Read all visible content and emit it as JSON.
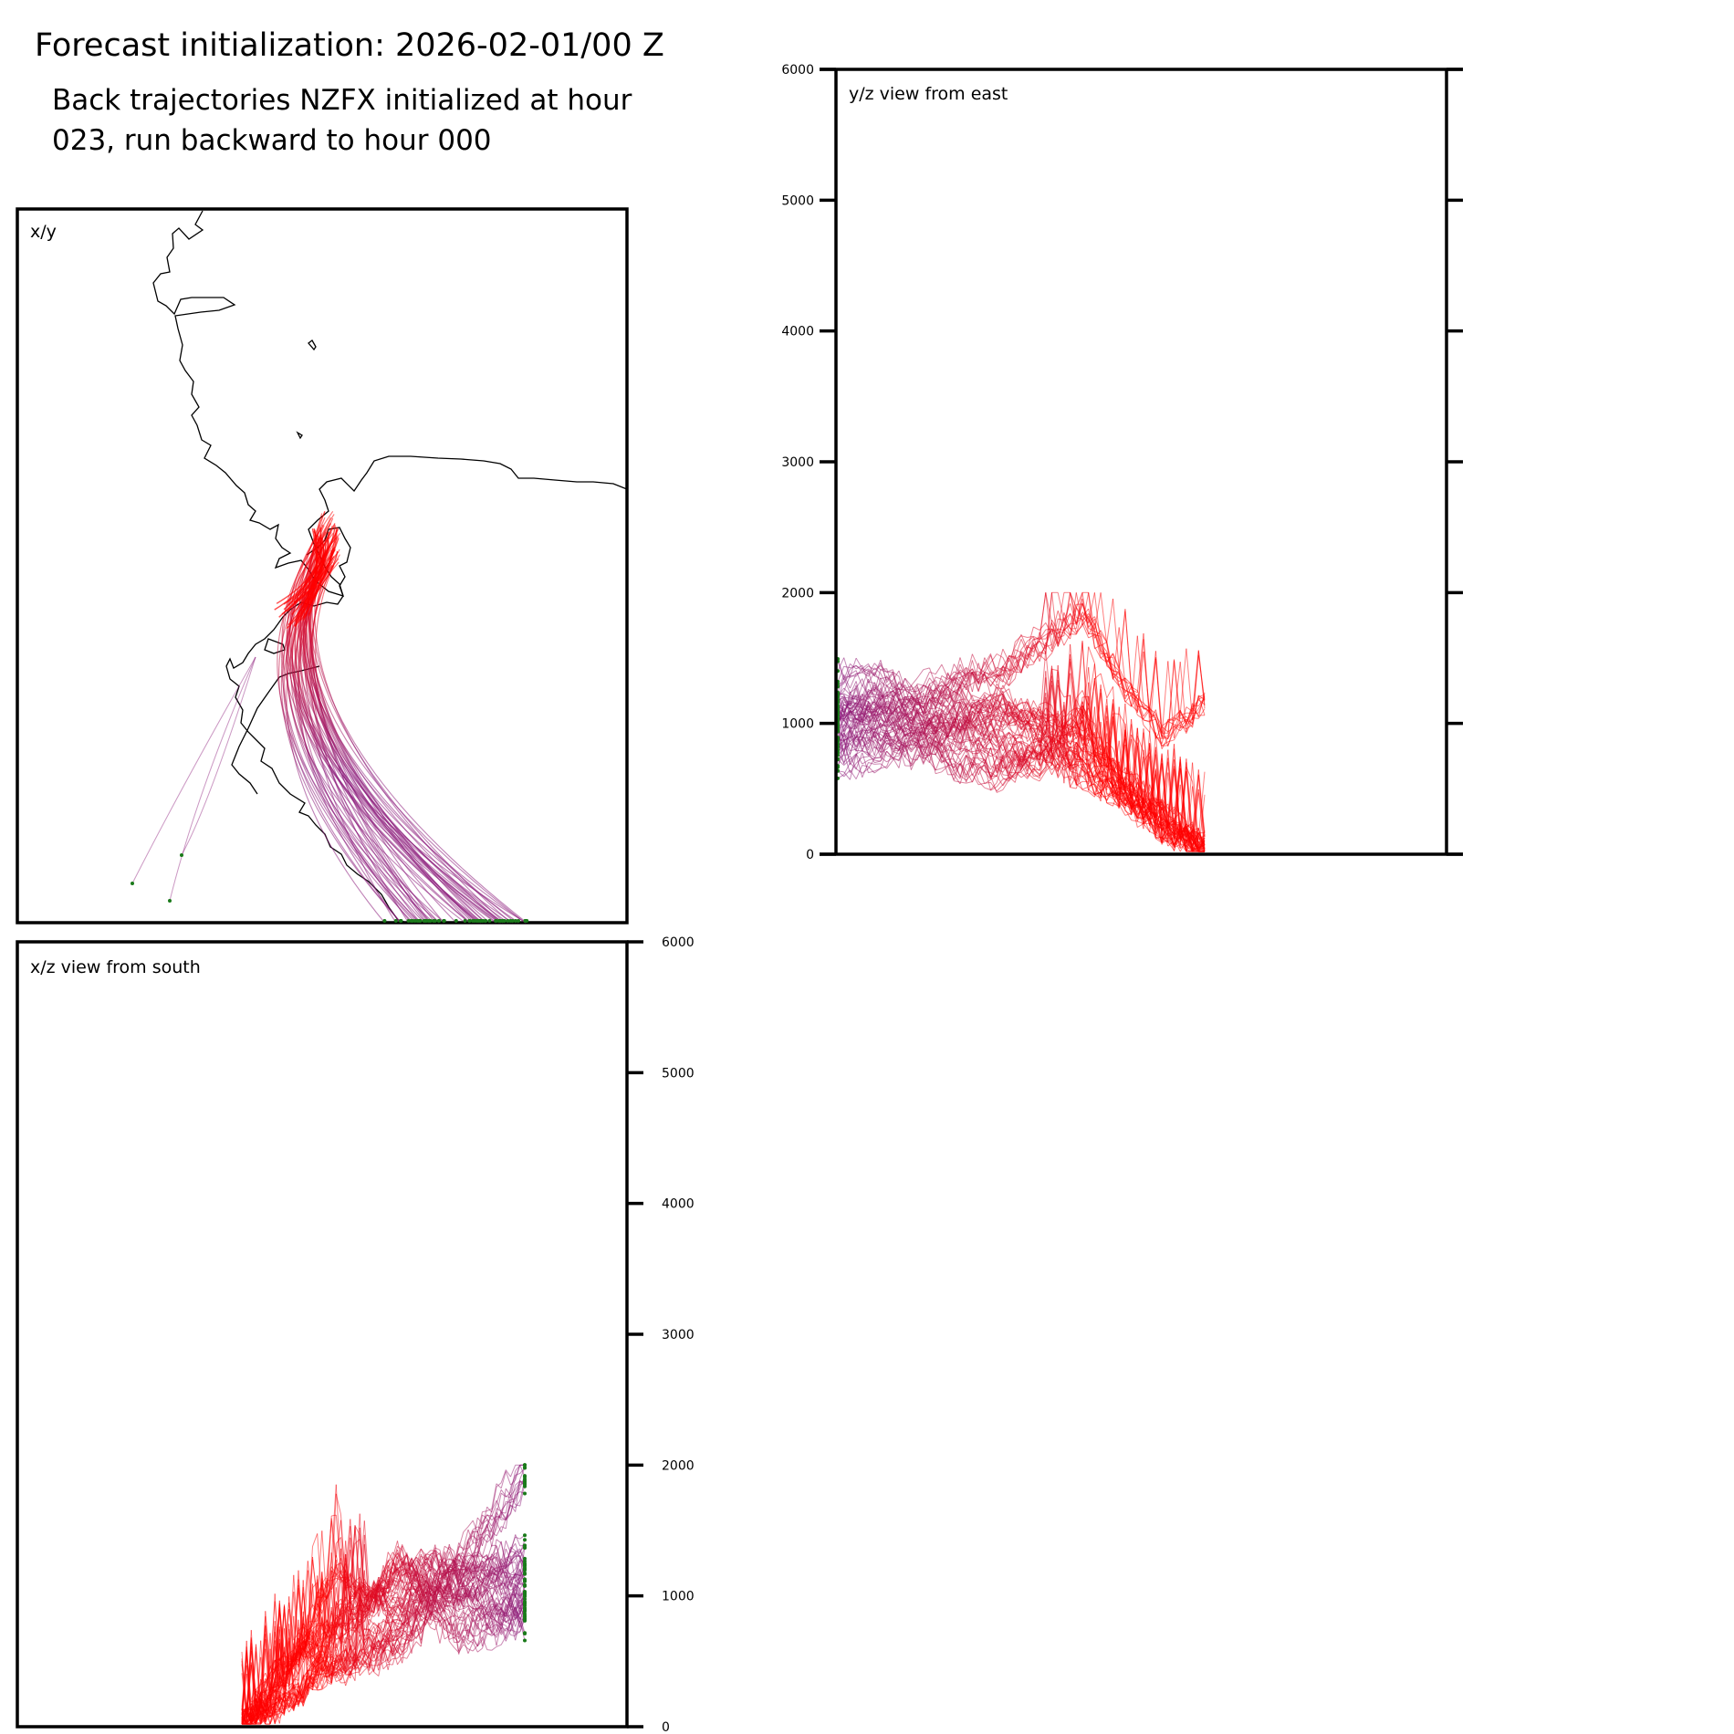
{
  "figure": {
    "title": "Forecast initialization: 2026-02-01/00 Z",
    "subtitle": "Back trajectories NZFX initialized at hour 023, run backward to hour 000"
  },
  "colors": {
    "early": "#8b1a7a",
    "late": "#ff0000",
    "endpoint": "#1a7a1a",
    "coastline": "#000000"
  },
  "chart_data": [
    {
      "type": "line",
      "panel": "x/y",
      "title": "x/y",
      "xlabel": "",
      "ylabel": "",
      "features": [
        "coastline",
        "trajectory bundle",
        "endpoint markers"
      ]
    },
    {
      "type": "line",
      "panel": "y/z view from east",
      "title": "y/z view from east",
      "xlabel": "",
      "ylabel": "",
      "ylim": [
        0,
        6000
      ],
      "yticks": [
        0,
        1000,
        2000,
        3000,
        4000,
        5000,
        6000
      ],
      "series": [
        {
          "values": [
            1050,
            1080,
            1000,
            950,
            1200,
            900,
            700,
            500,
            150,
            50
          ]
        },
        {
          "values": [
            900,
            950,
            850,
            1000,
            800,
            700,
            1100,
            400,
            200,
            30
          ]
        },
        {
          "values": [
            1250,
            1300,
            1100,
            1150,
            1000,
            1050,
            900,
            600,
            300,
            80
          ]
        },
        {
          "values": [
            800,
            850,
            900,
            700,
            650,
            800,
            600,
            450,
            250,
            20
          ]
        },
        {
          "values": [
            1100,
            1150,
            1200,
            1350,
            1400,
            1600,
            1850,
            1300,
            900,
            1150
          ]
        }
      ]
    },
    {
      "type": "line",
      "panel": "x/z view from south",
      "title": "x/z view from south",
      "xlabel": "",
      "ylabel": "",
      "ylim": [
        0,
        6000
      ],
      "yticks": [
        0,
        1000,
        2000,
        3000,
        4000,
        5000,
        6000
      ],
      "series": [
        {
          "values": [
            1950,
            1600,
            1300,
            1000,
            800,
            650,
            500,
            300,
            100,
            0
          ]
        },
        {
          "values": [
            1100,
            1150,
            1050,
            1000,
            1300,
            900,
            700,
            300,
            150,
            50
          ]
        },
        {
          "values": [
            950,
            900,
            1000,
            1100,
            900,
            1050,
            800,
            600,
            400,
            20
          ]
        },
        {
          "values": [
            1250,
            1200,
            1150,
            1250,
            1100,
            950,
            1200,
            700,
            250,
            40
          ]
        },
        {
          "values": [
            800,
            750,
            700,
            850,
            600,
            500,
            400,
            600,
            200,
            30
          ]
        }
      ]
    }
  ]
}
